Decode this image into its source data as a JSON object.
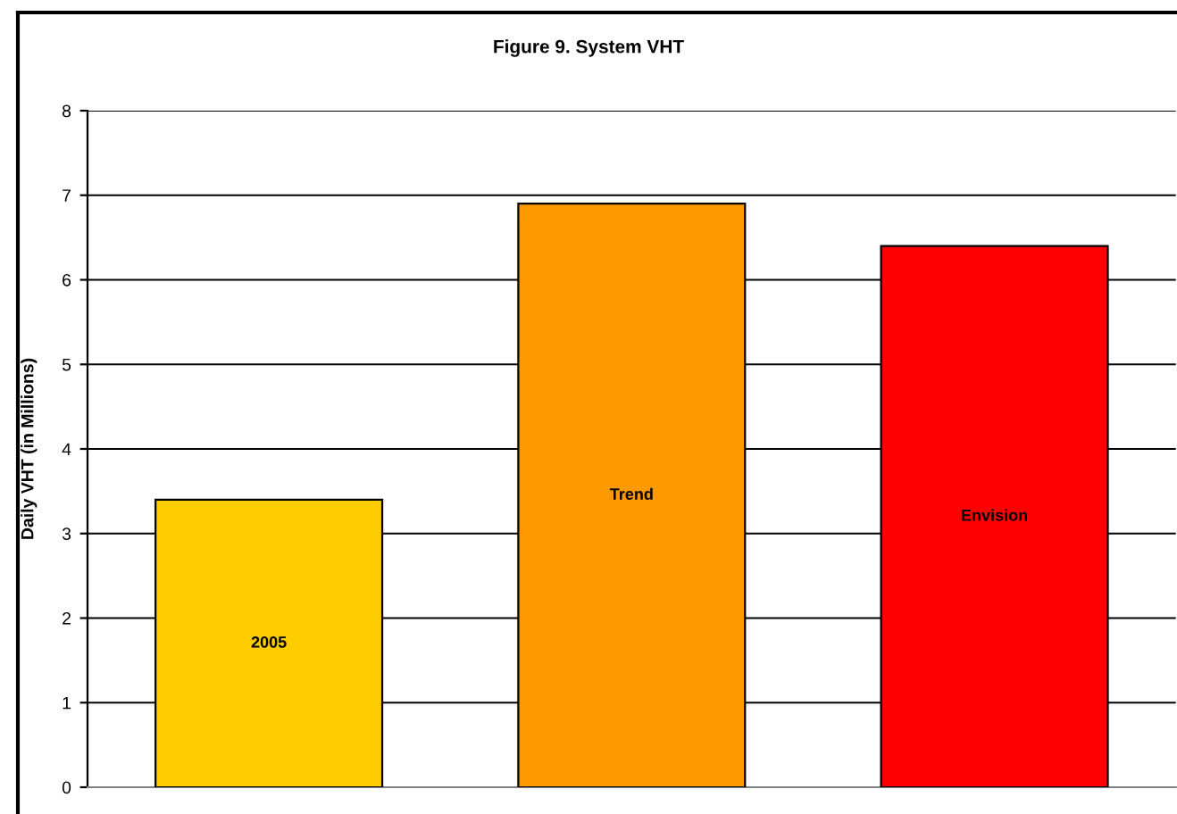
{
  "chart_data": {
    "type": "bar",
    "title": "Figure 9. System VHT",
    "ylabel": "Daily VHT (in Millions)",
    "categories": [
      "2005",
      "Trend",
      "Envision"
    ],
    "values": [
      3.4,
      6.9,
      6.4
    ],
    "colors": [
      "#ffcc00",
      "#ff9900",
      "#ff0000"
    ],
    "ylim": [
      0,
      8
    ],
    "yticks": [
      0,
      1,
      2,
      3,
      4,
      5,
      6,
      7,
      8
    ],
    "grid": "y",
    "tick_labels": "y"
  }
}
